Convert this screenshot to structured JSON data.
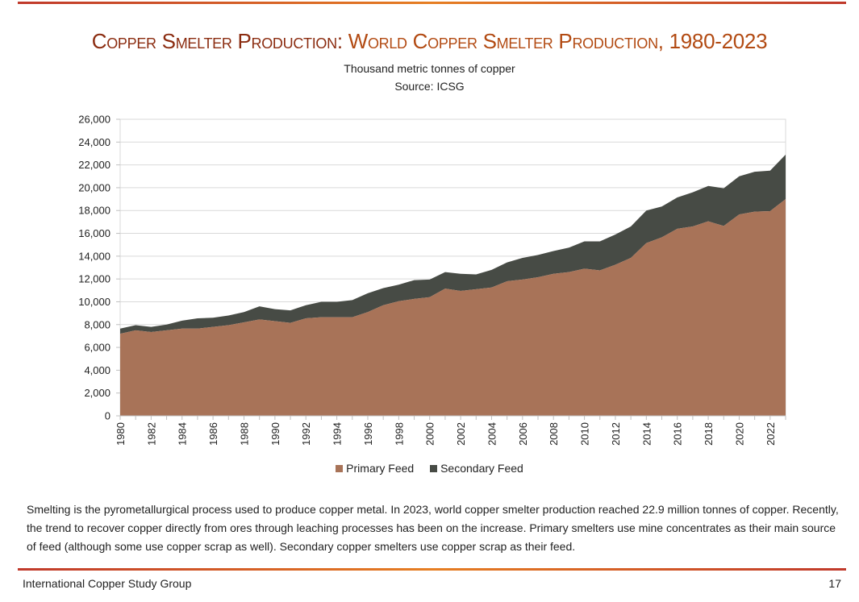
{
  "header": {
    "title_prefix": "Copper Smelter Production:",
    "title_main": "World Copper Smelter Production, 1980-2023",
    "subtitle": "Thousand metric tonnes of copper",
    "source": "Source: ICSG"
  },
  "colors": {
    "primary": "#a87358",
    "secondary": "#474b45",
    "title": "#b24a12",
    "rule": "#d35400"
  },
  "chart_data": {
    "type": "area",
    "stacked": true,
    "x": [
      1980,
      1981,
      1982,
      1983,
      1984,
      1985,
      1986,
      1987,
      1988,
      1989,
      1990,
      1991,
      1992,
      1993,
      1994,
      1995,
      1996,
      1997,
      1998,
      1999,
      2000,
      2001,
      2002,
      2003,
      2004,
      2005,
      2006,
      2007,
      2008,
      2009,
      2010,
      2011,
      2012,
      2013,
      2014,
      2015,
      2016,
      2017,
      2018,
      2019,
      2020,
      2021,
      2022,
      2023
    ],
    "x_tick_labels": [
      "1980",
      "1982",
      "1984",
      "1986",
      "1988",
      "1990",
      "1992",
      "1994",
      "1996",
      "1998",
      "2000",
      "2002",
      "2004",
      "2006",
      "2008",
      "2010",
      "2012",
      "2014",
      "2016",
      "2018",
      "2020",
      "2022"
    ],
    "series": [
      {
        "name": "Primary Feed",
        "values": [
          7200,
          7500,
          7350,
          7500,
          7650,
          7650,
          7800,
          7950,
          8200,
          8450,
          8300,
          8150,
          8550,
          8650,
          8650,
          8650,
          9100,
          9700,
          10050,
          10250,
          10400,
          11150,
          10950,
          11100,
          11250,
          11800,
          11950,
          12150,
          12450,
          12600,
          12900,
          12750,
          13250,
          13850,
          15150,
          15650,
          16400,
          16600,
          17050,
          16650,
          17650,
          17900,
          17950,
          19000
        ]
      },
      {
        "name": "Secondary Feed",
        "values": [
          450,
          450,
          450,
          500,
          700,
          900,
          800,
          850,
          900,
          1150,
          1050,
          1100,
          1150,
          1350,
          1350,
          1500,
          1650,
          1500,
          1450,
          1650,
          1550,
          1450,
          1500,
          1300,
          1550,
          1650,
          1900,
          1950,
          2000,
          2150,
          2400,
          2550,
          2650,
          2750,
          2850,
          2700,
          2750,
          3000,
          3100,
          3300,
          3350,
          3500,
          3550,
          3900
        ]
      }
    ],
    "ylim": [
      0,
      26000
    ],
    "y_ticks": [
      "0",
      "2,000",
      "4,000",
      "6,000",
      "8,000",
      "10,000",
      "12,000",
      "14,000",
      "16,000",
      "18,000",
      "20,000",
      "22,000",
      "24,000",
      "26,000"
    ],
    "grid": true,
    "legend_position": "bottom"
  },
  "legend": {
    "primary": "Primary Feed",
    "secondary": "Secondary Feed"
  },
  "body": {
    "paragraph": "Smelting is the pyrometallurgical process used to produce copper metal.  In 2023, world copper smelter production reached 22.9 million tonnes of copper. Recently, the trend to recover copper directly from ores through leaching processes has been on the increase. Primary smelters use mine concentrates as their main source of feed (although some use copper scrap as well). Secondary copper smelters use copper scrap as their feed."
  },
  "footer": {
    "organization": "International Copper Study Group",
    "page_number": "17"
  }
}
